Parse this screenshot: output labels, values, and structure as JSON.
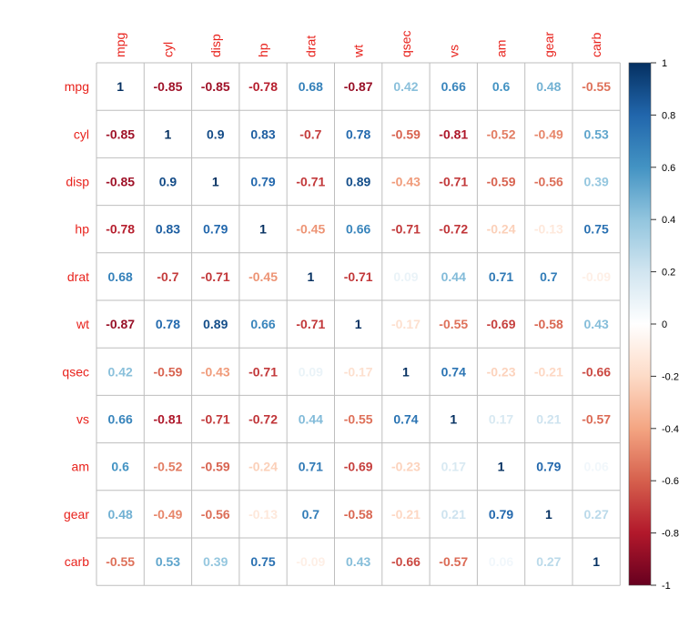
{
  "chart_data": {
    "type": "heatmap",
    "variables": [
      "mpg",
      "cyl",
      "disp",
      "hp",
      "drat",
      "wt",
      "qsec",
      "vs",
      "am",
      "gear",
      "carb"
    ],
    "matrix": [
      [
        1,
        -0.85,
        -0.85,
        -0.78,
        0.68,
        -0.87,
        0.42,
        0.66,
        0.6,
        0.48,
        -0.55
      ],
      [
        -0.85,
        1,
        0.9,
        0.83,
        -0.7,
        0.78,
        -0.59,
        -0.81,
        -0.52,
        -0.49,
        0.53
      ],
      [
        -0.85,
        0.9,
        1,
        0.79,
        -0.71,
        0.89,
        -0.43,
        -0.71,
        -0.59,
        -0.56,
        0.39
      ],
      [
        -0.78,
        0.83,
        0.79,
        1,
        -0.45,
        0.66,
        -0.71,
        -0.72,
        -0.24,
        -0.13,
        0.75
      ],
      [
        0.68,
        -0.7,
        -0.71,
        -0.45,
        1,
        -0.71,
        0.09,
        0.44,
        0.71,
        0.7,
        -0.09
      ],
      [
        -0.87,
        0.78,
        0.89,
        0.66,
        -0.71,
        1,
        -0.17,
        -0.55,
        -0.69,
        -0.58,
        0.43
      ],
      [
        0.42,
        -0.59,
        -0.43,
        -0.71,
        0.09,
        -0.17,
        1,
        0.74,
        -0.23,
        -0.21,
        -0.66
      ],
      [
        0.66,
        -0.81,
        -0.71,
        -0.72,
        0.44,
        -0.55,
        0.74,
        1,
        0.17,
        0.21,
        -0.57
      ],
      [
        0.6,
        -0.52,
        -0.59,
        -0.24,
        0.71,
        -0.69,
        -0.23,
        0.17,
        1,
        0.79,
        0.06
      ],
      [
        0.48,
        -0.49,
        -0.56,
        -0.13,
        0.7,
        -0.58,
        -0.21,
        0.21,
        0.79,
        1,
        0.27
      ],
      [
        -0.55,
        0.53,
        0.39,
        0.75,
        -0.09,
        0.43,
        -0.66,
        -0.57,
        0.06,
        0.27,
        1
      ]
    ],
    "colorbar": {
      "range": [
        -1,
        1
      ],
      "ticks": [
        "1",
        "0.8",
        "0.6",
        "0.4",
        "0.2",
        "0",
        "-0.2",
        "-0.4",
        "-0.6",
        "-0.8",
        "-1"
      ]
    },
    "colors": {
      "label": "#e8221c",
      "grid": "#bebebe",
      "scale": [
        "#67001f",
        "#b2182b",
        "#d6604d",
        "#f4a582",
        "#fddbc7",
        "#ffffff",
        "#d1e5f0",
        "#92c5de",
        "#4393c3",
        "#2166ac",
        "#053061"
      ]
    },
    "grid": true,
    "legend": "right"
  }
}
